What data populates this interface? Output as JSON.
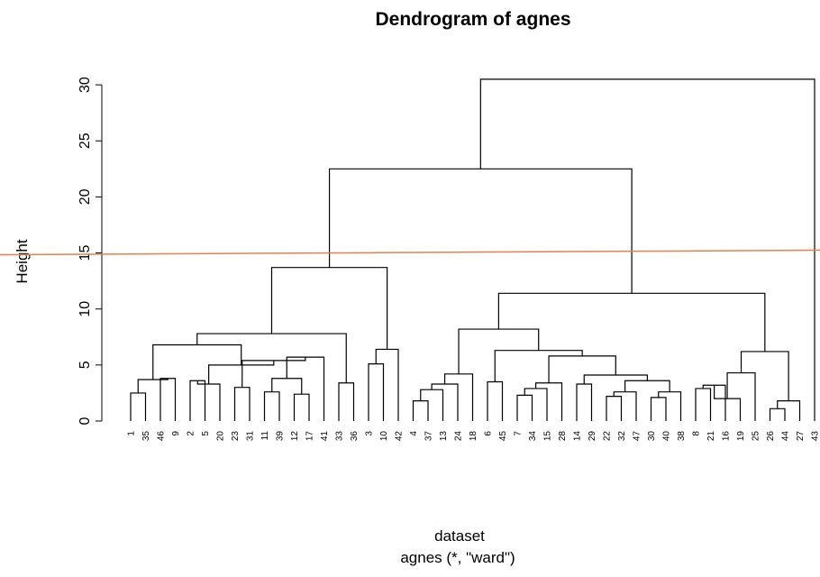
{
  "chart_data": {
    "type": "dendrogram",
    "title": "Dendrogram of agnes",
    "ylabel": "Height",
    "xlabel": "dataset",
    "sub_label": "agnes (*, \"ward\")",
    "ylim": [
      0,
      30
    ],
    "yticks": [
      0,
      5,
      10,
      15,
      20,
      25,
      30
    ],
    "leaf_order": [
      1,
      35,
      46,
      9,
      2,
      5,
      20,
      23,
      31,
      11,
      39,
      12,
      17,
      41,
      33,
      36,
      3,
      10,
      42,
      4,
      37,
      13,
      24,
      18,
      6,
      45,
      7,
      34,
      15,
      28,
      14,
      29,
      22,
      32,
      47,
      30,
      40,
      38,
      8,
      21,
      16,
      19,
      25,
      26,
      44,
      27,
      43
    ],
    "merges": [
      {
        "left": "1",
        "right": "35",
        "height": 2.5
      },
      {
        "left": "46",
        "right": "9",
        "height": 3.8
      },
      {
        "left": "m1",
        "right": "m2",
        "height": 3.7
      },
      {
        "left": "2",
        "right": "5",
        "height": 3.6
      },
      {
        "left": "m4",
        "right": "20",
        "height": 3.3
      },
      {
        "left": "23",
        "right": "31",
        "height": 3.0
      },
      {
        "left": "11",
        "right": "39",
        "height": 2.6
      },
      {
        "left": "12",
        "right": "17",
        "height": 2.4
      },
      {
        "left": "m7",
        "right": "m8",
        "height": 3.8
      },
      {
        "left": "m9",
        "right": "41",
        "height": 5.7
      },
      {
        "left": "m6",
        "right": "m10",
        "height": 5.4
      },
      {
        "left": "m5",
        "right": "m11",
        "height": 5.0
      },
      {
        "left": "m3",
        "right": "m12",
        "height": 6.8
      },
      {
        "left": "33",
        "right": "36",
        "height": 3.4
      },
      {
        "left": "m13",
        "right": "m14",
        "height": 7.8
      },
      {
        "left": "3",
        "right": "10",
        "height": 5.1
      },
      {
        "left": "m16",
        "right": "42",
        "height": 6.4
      },
      {
        "left": "m15",
        "right": "m17",
        "height": 13.7
      },
      {
        "left": "4",
        "right": "37",
        "height": 1.8
      },
      {
        "left": "m19",
        "right": "13",
        "height": 2.8
      },
      {
        "left": "m20",
        "right": "24",
        "height": 3.3
      },
      {
        "left": "m21",
        "right": "18",
        "height": 4.2
      },
      {
        "left": "6",
        "right": "45",
        "height": 3.5
      },
      {
        "left": "7",
        "right": "34",
        "height": 2.3
      },
      {
        "left": "m24",
        "right": "15",
        "height": 2.9
      },
      {
        "left": "m25",
        "right": "28",
        "height": 3.4
      },
      {
        "left": "14",
        "right": "29",
        "height": 3.3
      },
      {
        "left": "22",
        "right": "32",
        "height": 2.2
      },
      {
        "left": "m28",
        "right": "47",
        "height": 2.6
      },
      {
        "left": "30",
        "right": "40",
        "height": 2.1
      },
      {
        "left": "m30",
        "right": "38",
        "height": 2.6
      },
      {
        "left": "m29",
        "right": "m31",
        "height": 3.6
      },
      {
        "left": "m27",
        "right": "m32",
        "height": 4.1
      },
      {
        "left": "m26",
        "right": "m33",
        "height": 5.8
      },
      {
        "left": "m23",
        "right": "m34",
        "height": 6.3
      },
      {
        "left": "m22",
        "right": "m35",
        "height": 8.2
      },
      {
        "left": "8",
        "right": "21",
        "height": 2.9
      },
      {
        "left": "m37",
        "right": "16",
        "height": 3.2
      },
      {
        "left": "m38",
        "right": "19",
        "height": 2.0
      },
      {
        "left": "m39",
        "right": "25",
        "height": 4.3
      },
      {
        "left": "26",
        "right": "44",
        "height": 1.1
      },
      {
        "left": "m41",
        "right": "27",
        "height": 1.8
      },
      {
        "left": "m40",
        "right": "m42",
        "height": 6.2
      },
      {
        "left": "m36",
        "right": "m43",
        "height": 11.4
      },
      {
        "left": "m18",
        "right": "m44",
        "height": 22.5
      },
      {
        "left": "m45",
        "right": "43",
        "height": 30.5
      }
    ],
    "cut_line": {
      "height": 15.0,
      "color": "#e8804f"
    },
    "grid": false,
    "legend": "none"
  }
}
